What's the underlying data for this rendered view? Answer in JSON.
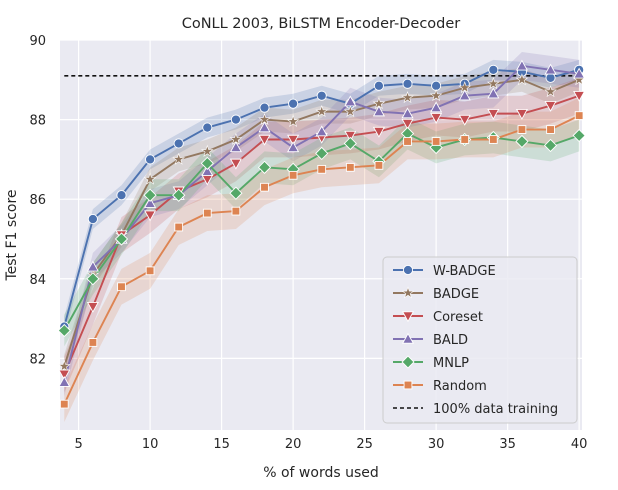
{
  "chart_data": {
    "type": "line",
    "title": "CoNLL 2003, BiLSTM Encoder-Decoder",
    "xlabel": "% of words used",
    "ylabel": "Test F1 score",
    "xlim": [
      3.7,
      40.2
    ],
    "ylim": [
      80.2,
      90
    ],
    "xticks": [
      5,
      10,
      15,
      20,
      25,
      30,
      35,
      40
    ],
    "yticks": [
      82,
      84,
      86,
      88,
      90
    ],
    "grid": true,
    "legend_position": "lower-right",
    "x": [
      4,
      6,
      8,
      10,
      12,
      14,
      16,
      18,
      20,
      22,
      24,
      26,
      28,
      30,
      32,
      34,
      36,
      38,
      40
    ],
    "series": [
      {
        "name": "W-BADGE",
        "color": "#4c72b0",
        "marker": "circle",
        "values": [
          82.8,
          85.5,
          86.1,
          87.0,
          87.4,
          87.8,
          88.0,
          88.3,
          88.4,
          88.6,
          88.4,
          88.85,
          88.9,
          88.85,
          88.9,
          89.25,
          89.2,
          89.05,
          89.25
        ],
        "band": 0.25
      },
      {
        "name": "BADGE",
        "color": "#937860",
        "marker": "star",
        "values": [
          81.8,
          84.1,
          85.1,
          86.5,
          87.0,
          87.2,
          87.5,
          88.0,
          87.95,
          88.2,
          88.2,
          88.4,
          88.55,
          88.6,
          88.8,
          88.9,
          89.0,
          88.7,
          89.0
        ],
        "band": 0.3
      },
      {
        "name": "Coreset",
        "color": "#c44e52",
        "marker": "triangle-down",
        "values": [
          81.6,
          83.3,
          85.1,
          85.6,
          86.2,
          86.5,
          86.9,
          87.5,
          87.5,
          87.55,
          87.6,
          87.7,
          87.9,
          88.05,
          88.0,
          88.15,
          88.15,
          88.35,
          88.6
        ],
        "band": 0.45
      },
      {
        "name": "BALD",
        "color": "#8172b3",
        "marker": "triangle-up",
        "values": [
          81.4,
          84.3,
          85.0,
          85.9,
          86.1,
          86.7,
          87.3,
          87.8,
          87.3,
          87.7,
          88.45,
          88.2,
          88.15,
          88.3,
          88.6,
          88.65,
          89.35,
          89.25,
          89.15
        ],
        "band": 0.35
      },
      {
        "name": "MNLP",
        "color": "#55a868",
        "marker": "diamond",
        "values": [
          82.7,
          84.0,
          85.0,
          86.1,
          86.1,
          86.9,
          86.15,
          86.8,
          86.75,
          87.15,
          87.4,
          86.95,
          87.65,
          87.3,
          87.5,
          87.55,
          87.45,
          87.35,
          87.6
        ],
        "band": 0.4
      },
      {
        "name": "Random",
        "color": "#dd8452",
        "marker": "square",
        "values": [
          80.85,
          82.4,
          83.8,
          84.2,
          85.3,
          85.65,
          85.7,
          86.3,
          86.6,
          86.75,
          86.8,
          86.85,
          87.45,
          87.45,
          87.5,
          87.5,
          87.75,
          87.75,
          88.1
        ],
        "band": 0.45
      }
    ],
    "reference_line": {
      "name": "100% data training",
      "value": 89.1,
      "color": "#111111"
    }
  }
}
